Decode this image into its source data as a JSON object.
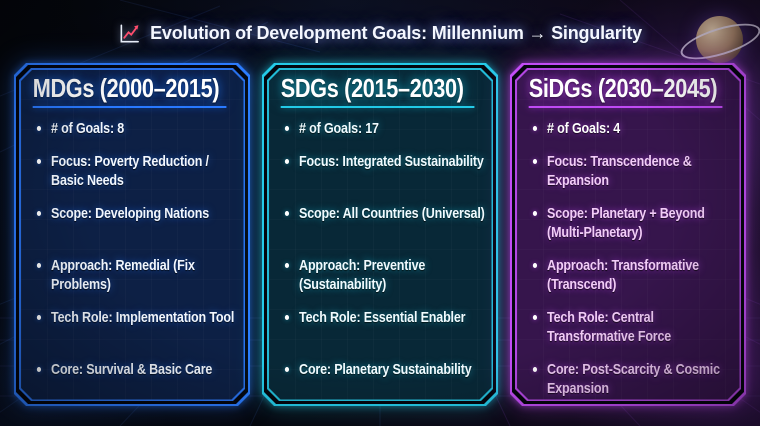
{
  "title": {
    "icon": "chart-increasing-icon",
    "text": "Evolution of Development Goals: Millennium → Singularity"
  },
  "cards": [
    {
      "id": "mdgs",
      "header": "MDGs (2000–2015)",
      "accent": "#2c7bff",
      "glow": "rgba(44,123,255,0.55)",
      "glow_soft": "rgba(44,123,255,0.35)",
      "background": "rgba(9,20,46,0.88)",
      "body_text_color": "#f2f7ff",
      "items": [
        {
          "text": "# of Goals: 8"
        },
        {
          "text": "Focus: Poverty Reduction / Basic Needs"
        },
        {
          "text": "Scope: Developing Nations"
        },
        {
          "text": "Approach: Remedial (Fix Problems)"
        },
        {
          "text": "Tech Role: Implementation Tool"
        },
        {
          "text": "Core: Survival & Basic Care"
        }
      ]
    },
    {
      "id": "sdgs",
      "header": "SDGs (2015–2030)",
      "accent": "#25cbe8",
      "glow": "rgba(37,203,232,0.55)",
      "glow_soft": "rgba(37,203,232,0.32)",
      "background": "rgba(5,19,33,0.88)",
      "body_text_color": "#f0fbff",
      "items": [
        {
          "text": "# of Goals: 17"
        },
        {
          "text": "Focus: Integrated Sustainability"
        },
        {
          "text": "Scope: All Countries (Universal)"
        },
        {
          "text": "Approach: Preventive (Sustainability)"
        },
        {
          "text": "Tech Role: Essential Enabler"
        },
        {
          "text": "Core: Planetary Sustainability"
        }
      ]
    },
    {
      "id": "sidgs",
      "header": "SiDGs (2030–2045)",
      "accent": "#c24df5",
      "glow": "rgba(194,77,245,0.62)",
      "glow_soft": "rgba(194,77,245,0.40)",
      "background": "rgba(22,9,38,0.80)",
      "body_text_color": "#f2ccf8",
      "items": [
        {
          "text": "# of Goals: 4",
          "color": "#ffffff"
        },
        {
          "text": "Focus: Transcendence & Expansion"
        },
        {
          "text": "Scope: Planetary + Beyond (Multi-Planetary)"
        },
        {
          "text": "Approach: Transformative (Transcend)"
        },
        {
          "text": "Tech Role: Central Transformative Force"
        },
        {
          "text": "Core: Post-Scarcity & Cosmic Expansion"
        }
      ]
    }
  ],
  "decorations": {
    "planets": [
      "saturn-planet",
      "ringed-blue-planet",
      "brown-moon",
      "purple-moon"
    ],
    "background_style": "space perspective grid"
  }
}
